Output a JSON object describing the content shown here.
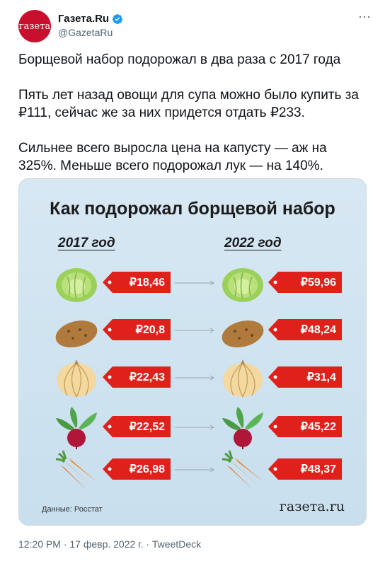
{
  "tweet": {
    "avatar_text": "газета",
    "author_name": "Газета.Ru",
    "author_handle": "@GazetaRu",
    "paragraphs": [
      "Борщевой набор подорожал в два раза с 2017 года",
      "Пять лет назад овощи для супа можно было купить за ₽111, сейчас же за них придется отдать ₽233.",
      "Сильнее всего выросла цена на капусту — аж на 325%. Меньше всего подорожал лук — на 140%."
    ],
    "timestamp": "12:20 PM · 17 февр. 2022 г. · TweetDeck",
    "verified_color": "#1d9bf0"
  },
  "infographic": {
    "title": "Как подорожал борщевой набор",
    "col_left": "2017 год",
    "col_right": "2022 год",
    "tag_color": "#e0201b",
    "items": [
      {
        "veg": "cabbage",
        "price_2017": "₽18,46",
        "price_2022": "₽59,96"
      },
      {
        "veg": "potato",
        "price_2017": "₽20,8",
        "price_2022": "₽48,24"
      },
      {
        "veg": "onion",
        "price_2017": "₽22,43",
        "price_2022": "₽31,4"
      },
      {
        "veg": "beet",
        "price_2017": "₽22,52",
        "price_2022": "₽45,22"
      },
      {
        "veg": "carrot",
        "price_2017": "₽26,98",
        "price_2022": "₽48,37"
      }
    ],
    "source": "Данные: Росстат",
    "logo": "газета.ru"
  }
}
